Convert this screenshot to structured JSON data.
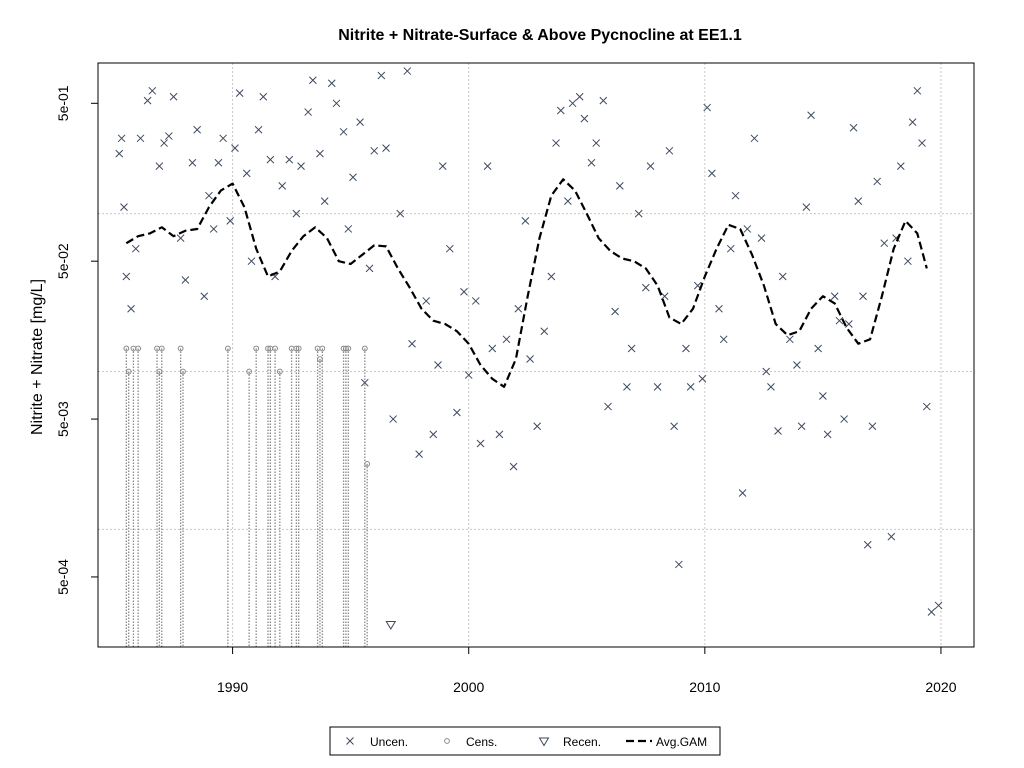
{
  "chart_data": {
    "type": "scatter",
    "title": "Nitrite + Nitrate-Surface & Above Pycnocline at EE1.1",
    "ylabel": "Nitrite + Nitrate [mg/L]",
    "xlabel": "",
    "y_scale": "log",
    "xlim": [
      1984.3,
      2021.4
    ],
    "ylim": [
      0.00018,
      0.9
    ],
    "x_ticks": [
      1990,
      2000,
      2010,
      2020
    ],
    "x_tick_labels": [
      "1990",
      "2000",
      "2010",
      "2020"
    ],
    "y_ticks": [
      0.0005,
      0.005,
      0.05,
      0.5
    ],
    "y_tick_labels": [
      "5e-04",
      "5e-03",
      "5e-02",
      "5e-01"
    ],
    "y_gridlines": [
      0.001,
      0.01,
      0.1,
      1
    ],
    "x_gridlines": [
      1990,
      2000,
      2010,
      2020
    ],
    "grid": true,
    "legend_position": "bottom",
    "legend": [
      "Uncen.",
      "Cens.",
      "Recen.",
      "Avg.GAM"
    ],
    "colors": {
      "points": "#3d4a5e",
      "censored": "#8a8a8a",
      "gam": "#000000",
      "grid": "#c8c8c8"
    },
    "series": [
      {
        "name": "Uncen.",
        "marker": "x",
        "points": [
          [
            1985.2,
            0.24
          ],
          [
            1985.3,
            0.3
          ],
          [
            1985.4,
            0.11
          ],
          [
            1985.5,
            0.04
          ],
          [
            1985.7,
            0.025
          ],
          [
            1985.9,
            0.06
          ],
          [
            1986.1,
            0.3
          ],
          [
            1986.4,
            0.52
          ],
          [
            1986.6,
            0.6
          ],
          [
            1986.9,
            0.2
          ],
          [
            1987.1,
            0.28
          ],
          [
            1987.3,
            0.31
          ],
          [
            1987.5,
            0.55
          ],
          [
            1987.8,
            0.07
          ],
          [
            1988.0,
            0.038
          ],
          [
            1988.3,
            0.21
          ],
          [
            1988.5,
            0.34
          ],
          [
            1988.8,
            0.03
          ],
          [
            1989.0,
            0.13
          ],
          [
            1989.2,
            0.08
          ],
          [
            1989.4,
            0.21
          ],
          [
            1989.6,
            0.3
          ],
          [
            1989.9,
            0.09
          ],
          [
            1990.1,
            0.26
          ],
          [
            1990.3,
            0.58
          ],
          [
            1990.6,
            0.18
          ],
          [
            1990.8,
            0.05
          ],
          [
            1991.1,
            0.34
          ],
          [
            1991.3,
            0.55
          ],
          [
            1991.6,
            0.22
          ],
          [
            1991.8,
            0.04
          ],
          [
            1992.1,
            0.15
          ],
          [
            1992.4,
            0.22
          ],
          [
            1992.7,
            0.1
          ],
          [
            1992.9,
            0.2
          ],
          [
            1993.2,
            0.44
          ],
          [
            1993.4,
            0.7
          ],
          [
            1993.7,
            0.24
          ],
          [
            1993.9,
            0.12
          ],
          [
            1994.2,
            0.67
          ],
          [
            1994.4,
            0.5
          ],
          [
            1994.7,
            0.33
          ],
          [
            1994.9,
            0.08
          ],
          [
            1995.1,
            0.17
          ],
          [
            1995.4,
            0.38
          ],
          [
            1995.6,
            0.0085
          ],
          [
            1995.8,
            0.045
          ],
          [
            1996.0,
            0.25
          ],
          [
            1996.3,
            0.75
          ],
          [
            1996.5,
            0.26
          ],
          [
            1996.8,
            0.005
          ],
          [
            1997.1,
            0.1
          ],
          [
            1997.4,
            0.8
          ],
          [
            1997.6,
            0.015
          ],
          [
            1997.9,
            0.003
          ],
          [
            1998.2,
            0.028
          ],
          [
            1998.5,
            0.004
          ],
          [
            1998.7,
            0.011
          ],
          [
            1998.9,
            0.2
          ],
          [
            1999.2,
            0.06
          ],
          [
            1999.5,
            0.0055
          ],
          [
            1999.8,
            0.032
          ],
          [
            2000.0,
            0.0095
          ],
          [
            2000.3,
            0.028
          ],
          [
            2000.5,
            0.0035
          ],
          [
            2000.8,
            0.2
          ],
          [
            2001.0,
            0.014
          ],
          [
            2001.3,
            0.004
          ],
          [
            2001.6,
            0.016
          ],
          [
            2001.9,
            0.0025
          ],
          [
            2002.1,
            0.025
          ],
          [
            2002.4,
            0.09
          ],
          [
            2002.6,
            0.012
          ],
          [
            2002.9,
            0.0045
          ],
          [
            2003.2,
            0.018
          ],
          [
            2003.5,
            0.04
          ],
          [
            2003.7,
            0.28
          ],
          [
            2003.9,
            0.45
          ],
          [
            2004.2,
            0.12
          ],
          [
            2004.4,
            0.5
          ],
          [
            2004.7,
            0.55
          ],
          [
            2004.9,
            0.4
          ],
          [
            2005.2,
            0.21
          ],
          [
            2005.4,
            0.28
          ],
          [
            2005.7,
            0.52
          ],
          [
            2005.9,
            0.006
          ],
          [
            2006.2,
            0.024
          ],
          [
            2006.4,
            0.15
          ],
          [
            2006.7,
            0.008
          ],
          [
            2006.9,
            0.014
          ],
          [
            2007.2,
            0.1
          ],
          [
            2007.5,
            0.034
          ],
          [
            2007.7,
            0.2
          ],
          [
            2008.0,
            0.008
          ],
          [
            2008.3,
            0.03
          ],
          [
            2008.5,
            0.25
          ],
          [
            2008.7,
            0.0045
          ],
          [
            2008.9,
            0.0006
          ],
          [
            2009.2,
            0.014
          ],
          [
            2009.4,
            0.008
          ],
          [
            2009.7,
            0.035
          ],
          [
            2009.9,
            0.009
          ],
          [
            2010.1,
            0.47
          ],
          [
            2010.3,
            0.18
          ],
          [
            2010.6,
            0.025
          ],
          [
            2010.8,
            0.016
          ],
          [
            2011.1,
            0.06
          ],
          [
            2011.3,
            0.13
          ],
          [
            2011.6,
            0.0017
          ],
          [
            2011.8,
            0.08
          ],
          [
            2012.1,
            0.3
          ],
          [
            2012.4,
            0.07
          ],
          [
            2012.6,
            0.01
          ],
          [
            2012.8,
            0.008
          ],
          [
            2013.1,
            0.0042
          ],
          [
            2013.3,
            0.04
          ],
          [
            2013.6,
            0.016
          ],
          [
            2013.9,
            0.011
          ],
          [
            2014.1,
            0.0045
          ],
          [
            2014.3,
            0.11
          ],
          [
            2014.5,
            0.42
          ],
          [
            2014.8,
            0.014
          ],
          [
            2015.0,
            0.007
          ],
          [
            2015.2,
            0.004
          ],
          [
            2015.5,
            0.03
          ],
          [
            2015.7,
            0.021
          ],
          [
            2015.9,
            0.005
          ],
          [
            2016.1,
            0.02
          ],
          [
            2016.3,
            0.35
          ],
          [
            2016.5,
            0.12
          ],
          [
            2016.7,
            0.03
          ],
          [
            2016.9,
            0.0008
          ],
          [
            2017.1,
            0.0045
          ],
          [
            2017.3,
            0.16
          ],
          [
            2017.6,
            0.065
          ],
          [
            2017.9,
            0.0009
          ],
          [
            2018.1,
            0.07
          ],
          [
            2018.3,
            0.2
          ],
          [
            2018.6,
            0.05
          ],
          [
            2018.8,
            0.38
          ],
          [
            2019.0,
            0.6
          ],
          [
            2019.2,
            0.28
          ],
          [
            2019.4,
            0.006
          ],
          [
            2019.6,
            0.0003
          ],
          [
            2019.9,
            0.00033
          ]
        ]
      },
      {
        "name": "Cens.",
        "marker": "o",
        "points": [
          [
            1985.5,
            0.014
          ],
          [
            1985.6,
            0.01
          ],
          [
            1985.8,
            0.014
          ],
          [
            1986.0,
            0.014
          ],
          [
            1986.8,
            0.014
          ],
          [
            1986.9,
            0.01
          ],
          [
            1987.0,
            0.014
          ],
          [
            1987.8,
            0.014
          ],
          [
            1987.9,
            0.01
          ],
          [
            1989.8,
            0.014
          ],
          [
            1990.7,
            0.01
          ],
          [
            1991.0,
            0.014
          ],
          [
            1991.5,
            0.014
          ],
          [
            1991.6,
            0.014
          ],
          [
            1991.8,
            0.014
          ],
          [
            1992.0,
            0.01
          ],
          [
            1992.5,
            0.014
          ],
          [
            1992.7,
            0.014
          ],
          [
            1992.8,
            0.014
          ],
          [
            1993.6,
            0.014
          ],
          [
            1993.7,
            0.012
          ],
          [
            1993.8,
            0.014
          ],
          [
            1994.7,
            0.014
          ],
          [
            1994.8,
            0.014
          ],
          [
            1994.9,
            0.014
          ],
          [
            1995.6,
            0.014
          ],
          [
            1995.7,
            0.0026
          ]
        ]
      },
      {
        "name": "Recen.",
        "marker": "triangle",
        "points": [
          [
            1996.7,
            0.00025
          ]
        ]
      },
      {
        "name": "Avg.GAM",
        "line": "dashed",
        "points": [
          [
            1985.5,
            0.065
          ],
          [
            1986.0,
            0.072
          ],
          [
            1986.5,
            0.075
          ],
          [
            1987.0,
            0.082
          ],
          [
            1987.5,
            0.072
          ],
          [
            1988.0,
            0.078
          ],
          [
            1988.5,
            0.08
          ],
          [
            1989.0,
            0.11
          ],
          [
            1989.5,
            0.14
          ],
          [
            1990.0,
            0.155
          ],
          [
            1990.5,
            0.11
          ],
          [
            1991.0,
            0.06
          ],
          [
            1991.5,
            0.04
          ],
          [
            1992.0,
            0.043
          ],
          [
            1992.5,
            0.058
          ],
          [
            1993.0,
            0.072
          ],
          [
            1993.5,
            0.082
          ],
          [
            1994.0,
            0.07
          ],
          [
            1994.5,
            0.05
          ],
          [
            1995.0,
            0.048
          ],
          [
            1995.5,
            0.055
          ],
          [
            1996.0,
            0.063
          ],
          [
            1996.5,
            0.062
          ],
          [
            1997.0,
            0.045
          ],
          [
            1997.5,
            0.034
          ],
          [
            1998.0,
            0.025
          ],
          [
            1998.5,
            0.021
          ],
          [
            1999.0,
            0.02
          ],
          [
            1999.5,
            0.018
          ],
          [
            2000.0,
            0.015
          ],
          [
            2000.5,
            0.011
          ],
          [
            2001.0,
            0.009
          ],
          [
            2001.5,
            0.008
          ],
          [
            2002.0,
            0.012
          ],
          [
            2002.5,
            0.03
          ],
          [
            2003.0,
            0.07
          ],
          [
            2003.5,
            0.13
          ],
          [
            2004.0,
            0.165
          ],
          [
            2004.5,
            0.14
          ],
          [
            2005.0,
            0.1
          ],
          [
            2005.5,
            0.07
          ],
          [
            2006.0,
            0.058
          ],
          [
            2006.5,
            0.052
          ],
          [
            2007.0,
            0.05
          ],
          [
            2007.5,
            0.045
          ],
          [
            2008.0,
            0.035
          ],
          [
            2008.5,
            0.022
          ],
          [
            2009.0,
            0.02
          ],
          [
            2009.5,
            0.025
          ],
          [
            2010.0,
            0.04
          ],
          [
            2010.5,
            0.06
          ],
          [
            2011.0,
            0.085
          ],
          [
            2011.5,
            0.08
          ],
          [
            2012.0,
            0.055
          ],
          [
            2012.5,
            0.035
          ],
          [
            2013.0,
            0.02
          ],
          [
            2013.5,
            0.017
          ],
          [
            2014.0,
            0.018
          ],
          [
            2014.5,
            0.025
          ],
          [
            2015.0,
            0.03
          ],
          [
            2015.5,
            0.027
          ],
          [
            2016.0,
            0.019
          ],
          [
            2016.5,
            0.015
          ],
          [
            2017.0,
            0.016
          ],
          [
            2017.5,
            0.03
          ],
          [
            2018.0,
            0.06
          ],
          [
            2018.5,
            0.09
          ],
          [
            2019.0,
            0.075
          ],
          [
            2019.4,
            0.045
          ]
        ]
      }
    ]
  }
}
